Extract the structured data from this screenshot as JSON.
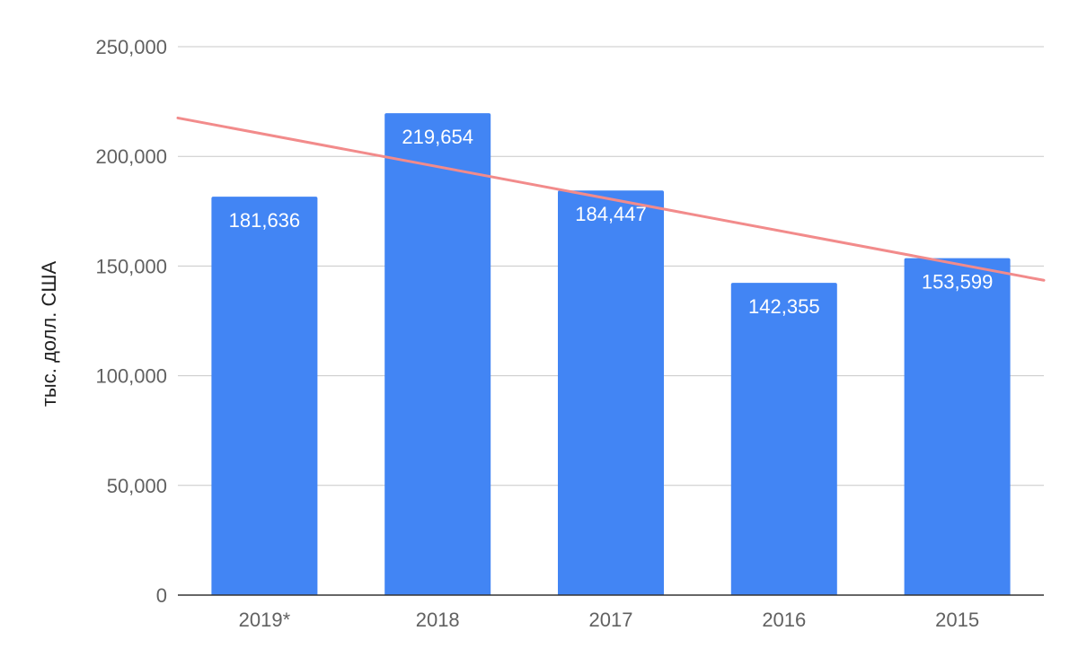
{
  "chart_data": {
    "type": "bar",
    "title": "",
    "xlabel": "",
    "ylabel": "тыс. долл. США",
    "categories": [
      "2019*",
      "2018",
      "2017",
      "2016",
      "2015"
    ],
    "values": [
      181636,
      219654,
      184447,
      142355,
      153599
    ],
    "data_labels": [
      "181,636",
      "219,654",
      "184,447",
      "142,355",
      "153,599"
    ],
    "ylim": [
      0,
      250000
    ],
    "yticks": [
      0,
      50000,
      100000,
      150000,
      200000,
      250000
    ],
    "ytick_labels": [
      "0",
      "50,000",
      "100,000",
      "150,000",
      "200,000",
      "250,000"
    ],
    "grid": true,
    "legend": "none",
    "trendline": {
      "type": "linear",
      "start_value": 217500,
      "end_value": 143500
    },
    "colors": {
      "bar": "#4285f4",
      "trendline": "#f28b8b",
      "grid": "#c8c8c8",
      "axis": "#333333"
    }
  }
}
